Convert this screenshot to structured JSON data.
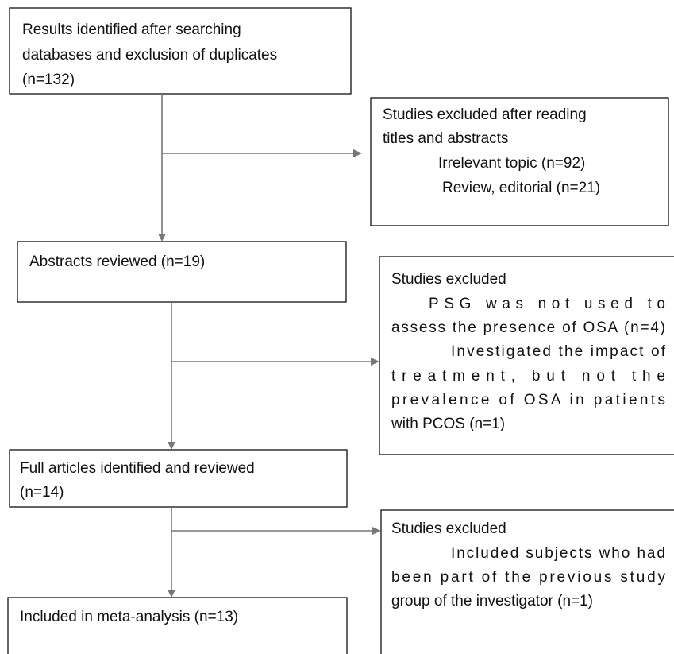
{
  "nodes": [
    {
      "lines": [
        "Results identified after searching",
        "databases and exclusion of duplicates",
        "(n=132)"
      ]
    },
    {
      "lines": [
        "Studies excluded after reading",
        "titles and abstracts",
        "Irrelevant topic (n=92)",
        "Review, editorial (n=21)"
      ]
    },
    {
      "lines": [
        "Abstracts reviewed (n=19)"
      ]
    },
    {
      "lines": [
        "Studies excluded",
        "PSG was not used to",
        "assess the presence of OSA (n=4)",
        "Investigated the impact of",
        "treatment, but not the",
        "prevalence of OSA in patients",
        "with PCOS (n=1)"
      ]
    },
    {
      "lines": [
        "Full articles identified and reviewed",
        "(n=14)"
      ]
    },
    {
      "lines": [
        "Studies excluded",
        "Included subjects who had",
        "been part of the previous study",
        "group of the investigator (n=1)"
      ]
    },
    {
      "lines": [
        "Included in meta-analysis (n=13)"
      ]
    }
  ]
}
